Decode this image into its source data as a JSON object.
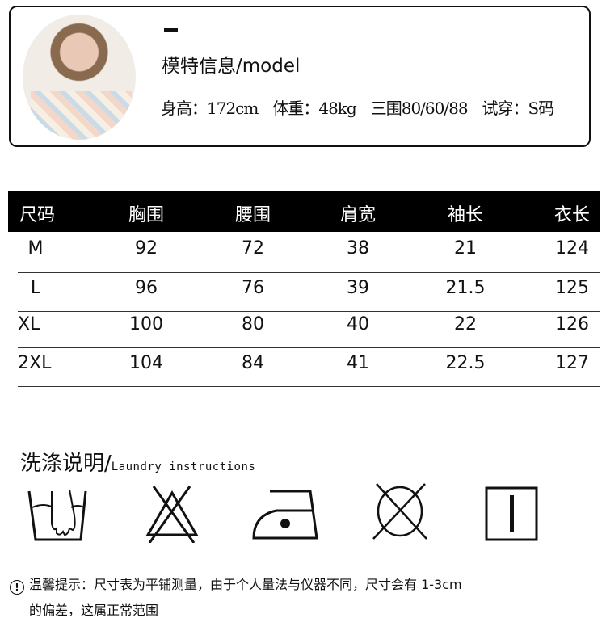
{
  "model": {
    "title": "模特信息/model",
    "height": "身高：172cm",
    "weight": "体重：48kg",
    "measurements": "三围80/60/88",
    "size_worn": "试穿：S码"
  },
  "size_table": {
    "headers": [
      "尺码",
      "胸围",
      "腰围",
      "肩宽",
      "袖长",
      "衣长"
    ],
    "rows": [
      [
        "M",
        "92",
        "72",
        "38",
        "21",
        "124"
      ],
      [
        "L",
        "96",
        "76",
        "39",
        "21.5",
        "125"
      ],
      [
        "XL",
        "100",
        "80",
        "40",
        "22",
        "126"
      ],
      [
        "2XL",
        "104",
        "84",
        "41",
        "22.5",
        "127"
      ]
    ]
  },
  "laundry": {
    "title": "洗涤说明/",
    "subtitle": "Laundry instructions",
    "icons": [
      "hand-wash-icon",
      "do-not-bleach-icon",
      "iron-medium-icon",
      "do-not-tumble-dry-icon",
      "line-dry-icon"
    ]
  },
  "note": {
    "icon": "warning-icon",
    "line1": "温馨提示：尺寸表为平铺测量，由于个人量法与仪器不同，尺寸会有 1-3cm",
    "line2": "的偏差，这属正常范围"
  }
}
